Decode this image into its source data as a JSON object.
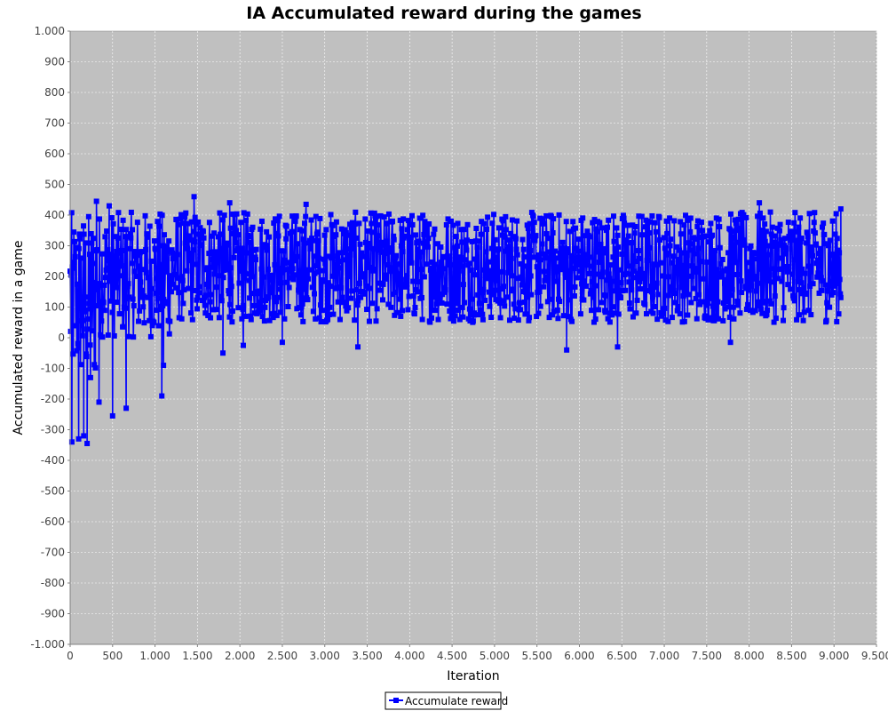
{
  "chart_data": {
    "type": "line",
    "title": "IA Accumulated reward during the games",
    "xlabel": "Iteration",
    "ylabel": "Accumulated reward in a game",
    "xlim": [
      0,
      9500
    ],
    "ylim": [
      -1000,
      1000
    ],
    "x_ticks": [
      "0",
      "500",
      "1.000",
      "1.500",
      "2.000",
      "2.500",
      "3.000",
      "3.500",
      "4.000",
      "4.500",
      "5.000",
      "5.500",
      "6.000",
      "6.500",
      "7.000",
      "7.500",
      "8.000",
      "8.500",
      "9.000",
      "9.500"
    ],
    "x_tick_values": [
      0,
      500,
      1000,
      1500,
      2000,
      2500,
      3000,
      3500,
      4000,
      4500,
      5000,
      5500,
      6000,
      6500,
      7000,
      7500,
      8000,
      8500,
      9000,
      9500
    ],
    "y_ticks": [
      "-1.000",
      "-900",
      "-800",
      "-700",
      "-600",
      "-500",
      "-400",
      "-300",
      "-200",
      "-100",
      "0",
      "100",
      "200",
      "300",
      "400",
      "500",
      "600",
      "700",
      "800",
      "900",
      "1.000"
    ],
    "y_tick_values": [
      -1000,
      -900,
      -800,
      -700,
      -600,
      -500,
      -400,
      -300,
      -200,
      -100,
      0,
      100,
      200,
      300,
      400,
      500,
      600,
      700,
      800,
      900,
      1000
    ],
    "grid": true,
    "legend": "bottom-center",
    "colors": {
      "plot_background": "#c0c0c0",
      "series": "#0000ff",
      "grid": "#ffffff"
    },
    "series": [
      {
        "name": "Accumulate reward",
        "x_range": [
          0,
          9080
        ],
        "typical_range": [
          50,
          410
        ],
        "notable_points": [
          {
            "x": 20,
            "y": -340
          },
          {
            "x": 100,
            "y": -330
          },
          {
            "x": 160,
            "y": -320
          },
          {
            "x": 200,
            "y": -345
          },
          {
            "x": 240,
            "y": -130
          },
          {
            "x": 340,
            "y": -210
          },
          {
            "x": 500,
            "y": -255
          },
          {
            "x": 660,
            "y": -230
          },
          {
            "x": 1080,
            "y": -190
          },
          {
            "x": 1100,
            "y": -90
          },
          {
            "x": 310,
            "y": 445
          },
          {
            "x": 460,
            "y": 430
          },
          {
            "x": 1460,
            "y": 460
          },
          {
            "x": 1880,
            "y": 440
          },
          {
            "x": 2780,
            "y": 435
          },
          {
            "x": 8120,
            "y": 440
          },
          {
            "x": 1800,
            "y": -50
          },
          {
            "x": 2040,
            "y": -25
          },
          {
            "x": 2500,
            "y": -15
          },
          {
            "x": 3390,
            "y": -30
          },
          {
            "x": 5850,
            "y": -40
          },
          {
            "x": 6450,
            "y": -30
          },
          {
            "x": 7780,
            "y": -15
          },
          {
            "x": 9080,
            "y": 420
          }
        ]
      }
    ]
  }
}
